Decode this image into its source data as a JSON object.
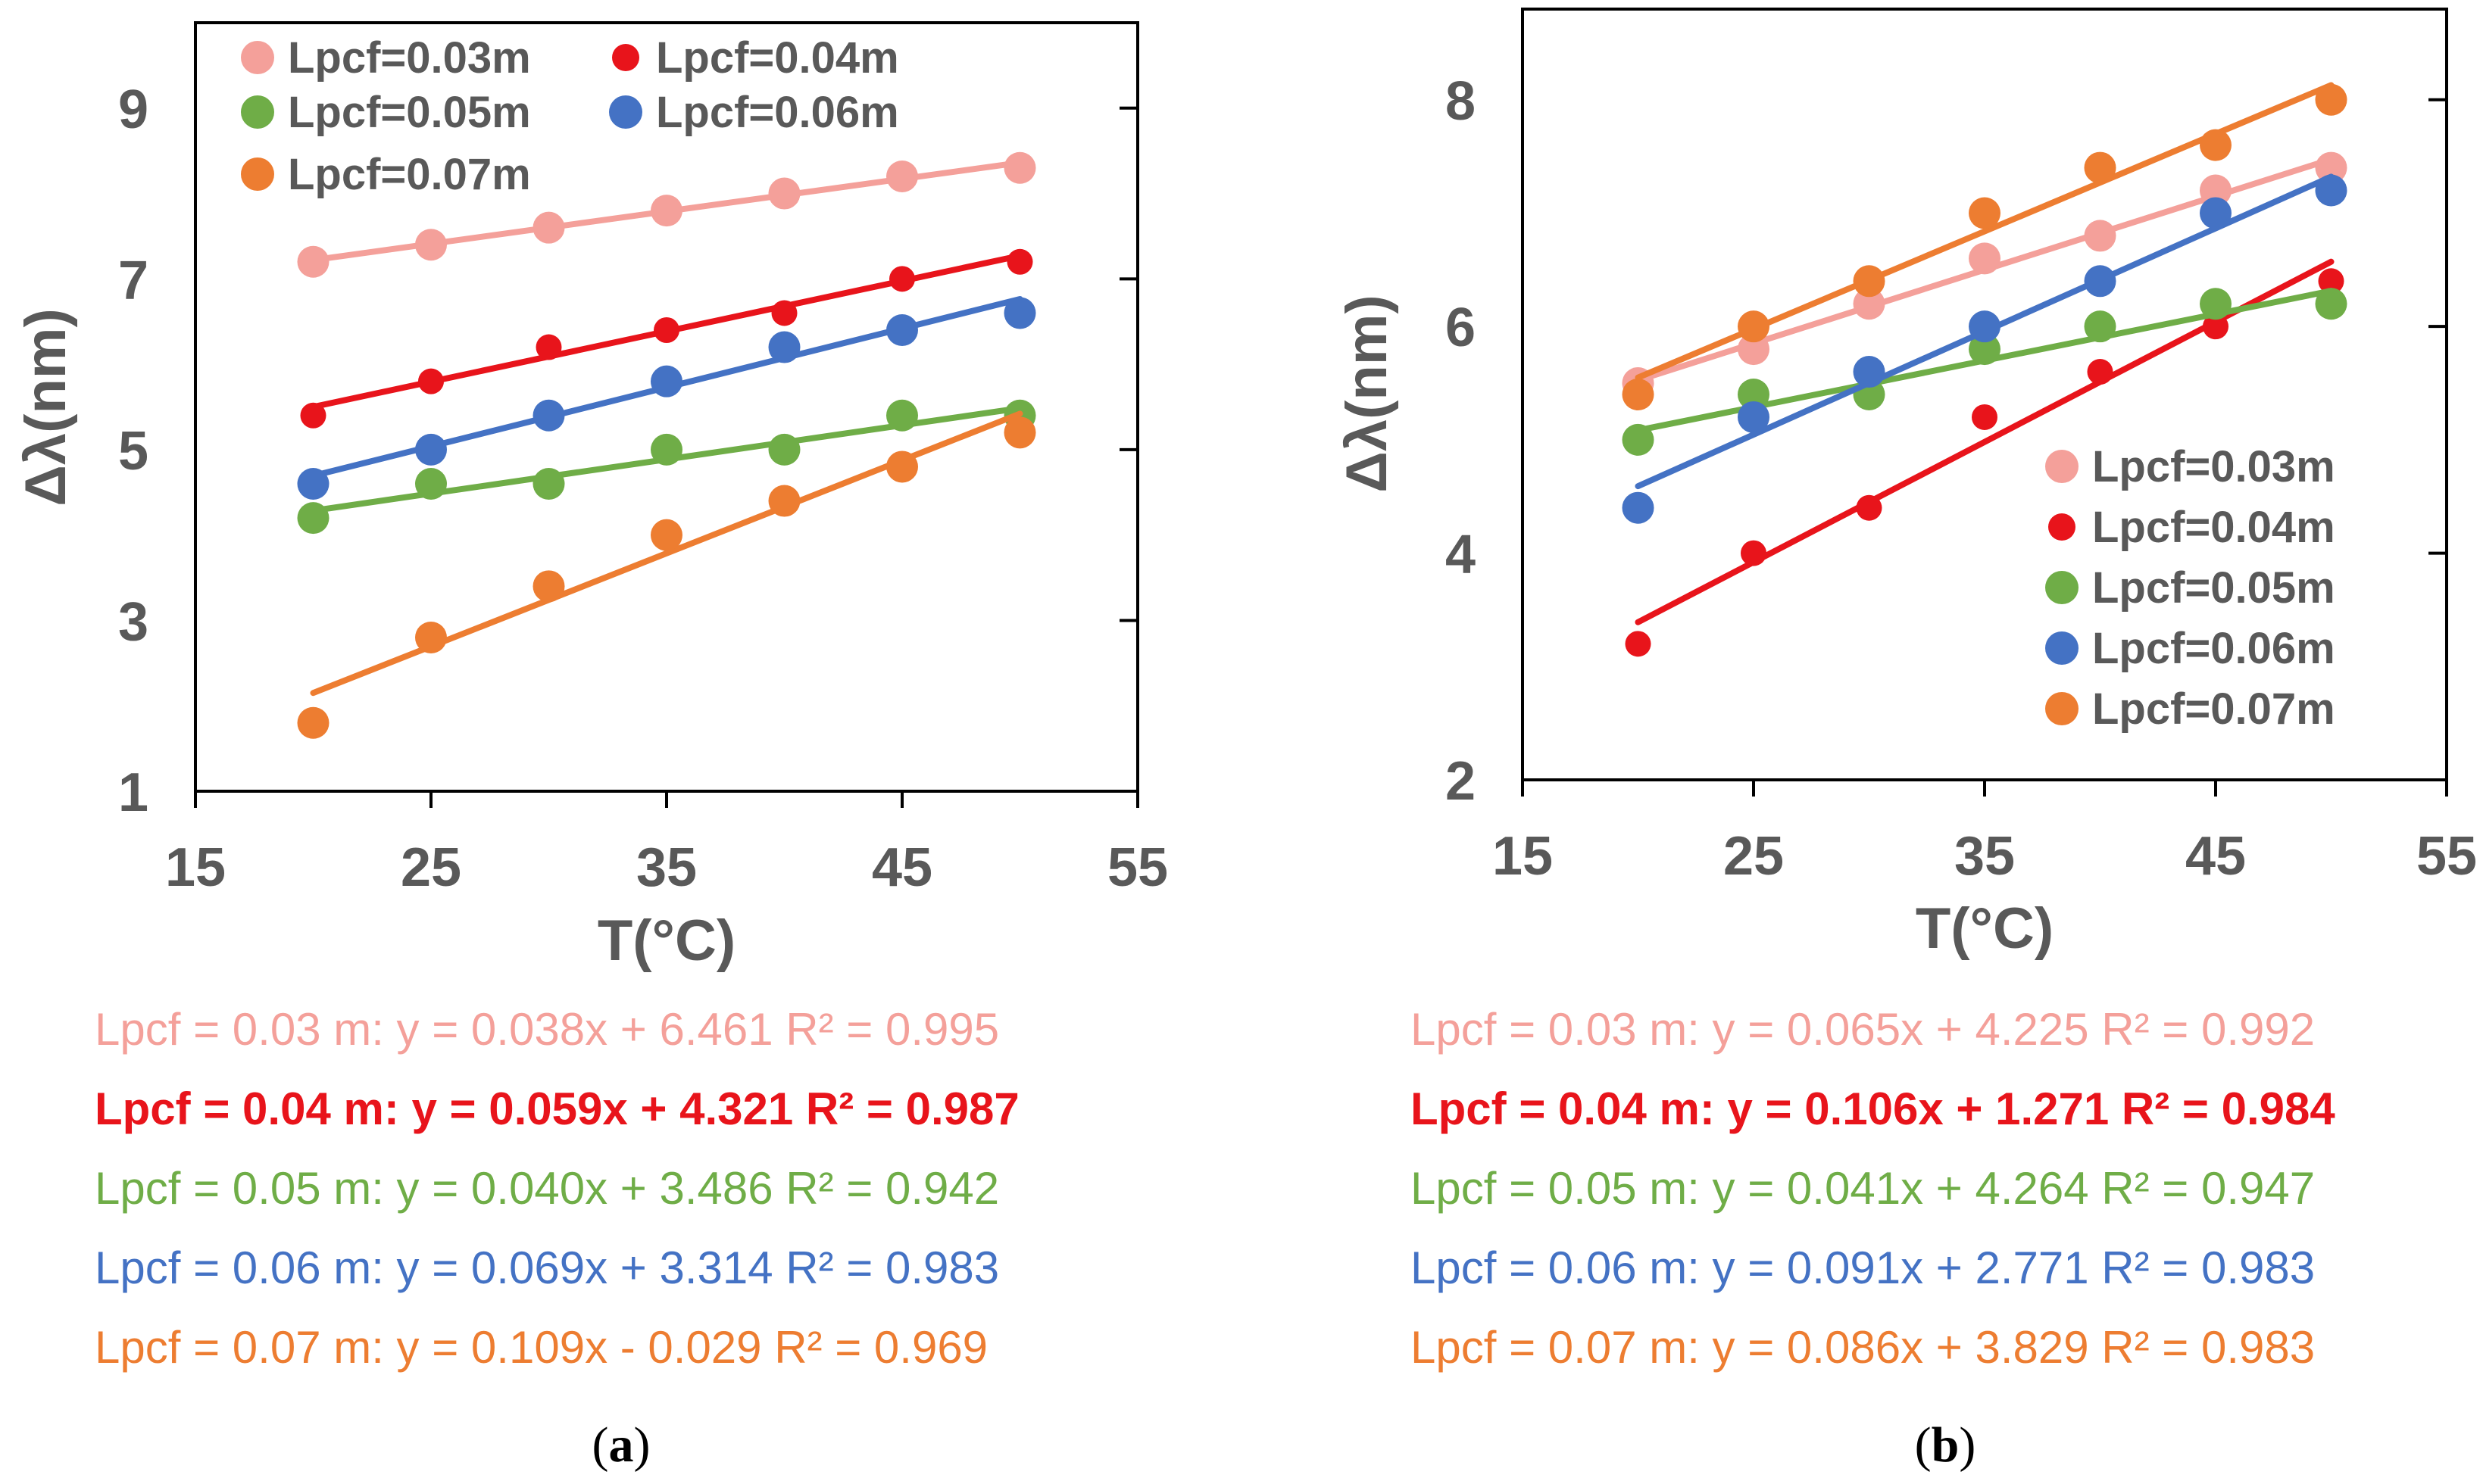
{
  "colors": {
    "s003": "#F4A09A",
    "s004": "#E8141B",
    "s005": "#6FAD47",
    "s006": "#4472C4",
    "s007": "#ED7D31",
    "axis": "#000000",
    "text": "#595959"
  },
  "chart_data": [
    {
      "type": "scatter",
      "panel": "(a)",
      "panel_letter": "a",
      "xlabel": "T(°C)",
      "ylabel": "Δλ(nm)",
      "xlim": [
        15,
        55
      ],
      "ylim": [
        1,
        10
      ],
      "xticks": [
        15,
        25,
        35,
        45,
        55
      ],
      "yticks": [
        1,
        3,
        5,
        7,
        9
      ],
      "legend_position": "top-left",
      "legend_layout": "two-column",
      "x": [
        20,
        25,
        30,
        35,
        40,
        45,
        50
      ],
      "series": [
        {
          "name": "Lpcf=0.03m",
          "color_key": "s003",
          "values": [
            7.2,
            7.4,
            7.6,
            7.8,
            8.0,
            8.2,
            8.3
          ],
          "fit": {
            "slope": 0.038,
            "intercept": 6.461
          },
          "equation": "Lpcf = 0.03 m: y = 0.038x + 6.461 R² = 0.995"
        },
        {
          "name": "Lpcf=0.04m",
          "color_key": "s004",
          "values": [
            5.4,
            5.8,
            6.2,
            6.4,
            6.6,
            7.0,
            7.2
          ],
          "fit": {
            "slope": 0.059,
            "intercept": 4.321
          },
          "equation": "Lpcf = 0.04 m: y = 0.059x + 4.321 R² = 0.987"
        },
        {
          "name": "Lpcf=0.05m",
          "color_key": "s005",
          "values": [
            4.2,
            4.6,
            4.6,
            5.0,
            5.0,
            5.4,
            5.4
          ],
          "fit": {
            "slope": 0.04,
            "intercept": 3.486
          },
          "equation": "Lpcf = 0.05 m: y = 0.040x + 3.486 R² = 0.942"
        },
        {
          "name": "Lpcf=0.06m",
          "color_key": "s006",
          "values": [
            4.6,
            5.0,
            5.4,
            5.8,
            6.2,
            6.4,
            6.6
          ],
          "fit": {
            "slope": 0.069,
            "intercept": 3.314
          },
          "equation": "Lpcf = 0.06 m: y = 0.069x + 3.314 R² = 0.983"
        },
        {
          "name": "Lpcf=0.07m",
          "color_key": "s007",
          "values": [
            1.8,
            2.8,
            3.4,
            4.0,
            4.4,
            4.8,
            5.2
          ],
          "fit": {
            "slope": 0.109,
            "intercept": -0.029
          },
          "equation": "Lpcf = 0.07 m: y = 0.109x - 0.029 R² = 0.969"
        }
      ]
    },
    {
      "type": "scatter",
      "panel": "(b)",
      "panel_letter": "b",
      "xlabel": "T(°C)",
      "ylabel": "Δλ(nm)",
      "xlim": [
        15,
        55
      ],
      "ylim": [
        2,
        8.8
      ],
      "xticks": [
        15,
        25,
        35,
        45,
        55
      ],
      "yticks": [
        2,
        4,
        6,
        8
      ],
      "legend_position": "bottom-right",
      "legend_layout": "single-column",
      "x": [
        20,
        25,
        30,
        35,
        40,
        45,
        50
      ],
      "series": [
        {
          "name": "Lpcf=0.03m",
          "color_key": "s003",
          "values": [
            5.5,
            5.8,
            6.2,
            6.6,
            6.8,
            7.2,
            7.4
          ],
          "fit": {
            "slope": 0.065,
            "intercept": 4.225
          },
          "equation": "Lpcf = 0.03 m: y = 0.065x + 4.225 R² = 0.992"
        },
        {
          "name": "Lpcf=0.04m",
          "color_key": "s004",
          "values": [
            3.2,
            4.0,
            4.4,
            5.2,
            5.6,
            6.0,
            6.4
          ],
          "fit": {
            "slope": 0.106,
            "intercept": 1.271
          },
          "equation": "Lpcf = 0.04 m: y = 0.106x + 1.271 R² = 0.984"
        },
        {
          "name": "Lpcf=0.05m",
          "color_key": "s005",
          "values": [
            5.0,
            5.4,
            5.4,
            5.8,
            6.0,
            6.2,
            6.2
          ],
          "fit": {
            "slope": 0.041,
            "intercept": 4.264
          },
          "equation": "Lpcf = 0.05 m: y = 0.041x + 4.264 R² = 0.947"
        },
        {
          "name": "Lpcf=0.06m",
          "color_key": "s006",
          "values": [
            4.4,
            5.2,
            5.6,
            6.0,
            6.4,
            7.0,
            7.2
          ],
          "fit": {
            "slope": 0.091,
            "intercept": 2.771
          },
          "equation": "Lpcf = 0.06 m: y = 0.091x + 2.771 R² = 0.983"
        },
        {
          "name": "Lpcf=0.07m",
          "color_key": "s007",
          "values": [
            5.4,
            6.0,
            6.4,
            7.0,
            7.4,
            7.6,
            8.0
          ],
          "fit": {
            "slope": 0.086,
            "intercept": 3.829
          },
          "equation": "Lpcf = 0.07 m: y = 0.086x + 3.829 R² = 0.983"
        }
      ]
    }
  ]
}
